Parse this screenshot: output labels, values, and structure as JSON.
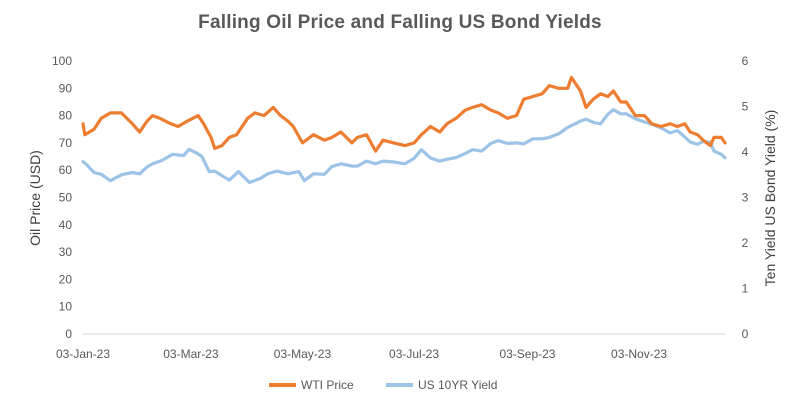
{
  "chart_data": {
    "type": "line",
    "title": "Falling Oil Price and Falling US Bond Yields",
    "xlabel": "",
    "ylabel": "Oil Price (USD)",
    "y2label": "Ten Yield  US Bond Yield (%)",
    "xlim": [
      "2023-01-03",
      "2023-12-20"
    ],
    "x_ticks": [
      "03-Jan-23",
      "03-Mar-23",
      "03-May-23",
      "03-Jul-23",
      "03-Sep-23",
      "03-Nov-23"
    ],
    "x_tick_dates": [
      "2023-01-03",
      "2023-03-03",
      "2023-05-03",
      "2023-07-03",
      "2023-09-03",
      "2023-11-03"
    ],
    "ylim": [
      0,
      100
    ],
    "y_ticks": [
      0,
      10,
      20,
      30,
      40,
      50,
      60,
      70,
      80,
      90,
      100
    ],
    "y2lim": [
      0,
      6
    ],
    "y2_ticks": [
      0,
      1,
      2,
      3,
      4,
      5,
      6
    ],
    "grid": false,
    "legend": "bottom",
    "series": [
      {
        "name": "WTI Price",
        "axis": "left",
        "color": "#ED7D31",
        "points": [
          [
            "2023-01-03",
            77
          ],
          [
            "2023-01-04",
            73
          ],
          [
            "2023-01-09",
            75
          ],
          [
            "2023-01-13",
            79
          ],
          [
            "2023-01-18",
            81
          ],
          [
            "2023-01-24",
            81
          ],
          [
            "2023-01-30",
            77
          ],
          [
            "2023-02-03",
            74
          ],
          [
            "2023-02-07",
            78
          ],
          [
            "2023-02-10",
            80
          ],
          [
            "2023-02-14",
            79
          ],
          [
            "2023-02-20",
            77
          ],
          [
            "2023-02-24",
            76
          ],
          [
            "2023-03-01",
            78
          ],
          [
            "2023-03-07",
            80
          ],
          [
            "2023-03-10",
            77
          ],
          [
            "2023-03-14",
            72
          ],
          [
            "2023-03-16",
            68
          ],
          [
            "2023-03-20",
            69
          ],
          [
            "2023-03-24",
            72
          ],
          [
            "2023-03-28",
            73
          ],
          [
            "2023-04-03",
            79
          ],
          [
            "2023-04-07",
            81
          ],
          [
            "2023-04-12",
            80
          ],
          [
            "2023-04-17",
            83
          ],
          [
            "2023-04-21",
            80
          ],
          [
            "2023-04-25",
            78
          ],
          [
            "2023-04-28",
            76
          ],
          [
            "2023-05-03",
            70
          ],
          [
            "2023-05-05",
            71
          ],
          [
            "2023-05-09",
            73
          ],
          [
            "2023-05-15",
            71
          ],
          [
            "2023-05-19",
            72
          ],
          [
            "2023-05-24",
            74
          ],
          [
            "2023-05-30",
            70
          ],
          [
            "2023-06-02",
            72
          ],
          [
            "2023-06-07",
            73
          ],
          [
            "2023-06-12",
            67
          ],
          [
            "2023-06-16",
            71
          ],
          [
            "2023-06-22",
            70
          ],
          [
            "2023-06-28",
            69
          ],
          [
            "2023-07-03",
            70
          ],
          [
            "2023-07-07",
            73
          ],
          [
            "2023-07-12",
            76
          ],
          [
            "2023-07-17",
            74
          ],
          [
            "2023-07-21",
            77
          ],
          [
            "2023-07-26",
            79
          ],
          [
            "2023-07-31",
            82
          ],
          [
            "2023-08-04",
            83
          ],
          [
            "2023-08-09",
            84
          ],
          [
            "2023-08-14",
            82
          ],
          [
            "2023-08-18",
            81
          ],
          [
            "2023-08-23",
            79
          ],
          [
            "2023-08-28",
            80
          ],
          [
            "2023-09-01",
            86
          ],
          [
            "2023-09-06",
            87
          ],
          [
            "2023-09-11",
            88
          ],
          [
            "2023-09-15",
            91
          ],
          [
            "2023-09-20",
            90
          ],
          [
            "2023-09-25",
            90
          ],
          [
            "2023-09-27",
            94
          ],
          [
            "2023-10-02",
            89
          ],
          [
            "2023-10-05",
            83
          ],
          [
            "2023-10-09",
            86
          ],
          [
            "2023-10-13",
            88
          ],
          [
            "2023-10-17",
            87
          ],
          [
            "2023-10-20",
            89
          ],
          [
            "2023-10-24",
            85
          ],
          [
            "2023-10-27",
            85
          ],
          [
            "2023-11-01",
            80
          ],
          [
            "2023-11-06",
            80
          ],
          [
            "2023-11-10",
            77
          ],
          [
            "2023-11-15",
            76
          ],
          [
            "2023-11-20",
            77
          ],
          [
            "2023-11-24",
            76
          ],
          [
            "2023-11-28",
            77
          ],
          [
            "2023-12-01",
            74
          ],
          [
            "2023-12-05",
            73
          ],
          [
            "2023-12-08",
            71
          ],
          [
            "2023-12-12",
            69
          ],
          [
            "2023-12-14",
            72
          ],
          [
            "2023-12-18",
            72
          ],
          [
            "2023-12-20",
            70
          ]
        ]
      },
      {
        "name": "US 10YR Yield",
        "axis": "right",
        "color": "#9DC3E6",
        "points": [
          [
            "2023-01-03",
            3.79
          ],
          [
            "2023-01-05",
            3.72
          ],
          [
            "2023-01-09",
            3.55
          ],
          [
            "2023-01-13",
            3.51
          ],
          [
            "2023-01-18",
            3.37
          ],
          [
            "2023-01-24",
            3.5
          ],
          [
            "2023-01-30",
            3.55
          ],
          [
            "2023-02-03",
            3.52
          ],
          [
            "2023-02-07",
            3.67
          ],
          [
            "2023-02-10",
            3.74
          ],
          [
            "2023-02-15",
            3.81
          ],
          [
            "2023-02-21",
            3.95
          ],
          [
            "2023-02-27",
            3.92
          ],
          [
            "2023-03-02",
            4.06
          ],
          [
            "2023-03-06",
            3.98
          ],
          [
            "2023-03-09",
            3.9
          ],
          [
            "2023-03-13",
            3.57
          ],
          [
            "2023-03-16",
            3.58
          ],
          [
            "2023-03-20",
            3.48
          ],
          [
            "2023-03-24",
            3.38
          ],
          [
            "2023-03-29",
            3.57
          ],
          [
            "2023-04-04",
            3.33
          ],
          [
            "2023-04-10",
            3.42
          ],
          [
            "2023-04-14",
            3.52
          ],
          [
            "2023-04-19",
            3.58
          ],
          [
            "2023-04-25",
            3.52
          ],
          [
            "2023-05-01",
            3.57
          ],
          [
            "2023-05-04",
            3.37
          ],
          [
            "2023-05-09",
            3.52
          ],
          [
            "2023-05-15",
            3.51
          ],
          [
            "2023-05-19",
            3.68
          ],
          [
            "2023-05-24",
            3.74
          ],
          [
            "2023-05-30",
            3.69
          ],
          [
            "2023-06-02",
            3.69
          ],
          [
            "2023-06-07",
            3.8
          ],
          [
            "2023-06-12",
            3.74
          ],
          [
            "2023-06-16",
            3.8
          ],
          [
            "2023-06-22",
            3.78
          ],
          [
            "2023-06-28",
            3.74
          ],
          [
            "2023-07-03",
            3.86
          ],
          [
            "2023-07-07",
            4.05
          ],
          [
            "2023-07-12",
            3.87
          ],
          [
            "2023-07-17",
            3.8
          ],
          [
            "2023-07-21",
            3.84
          ],
          [
            "2023-07-26",
            3.88
          ],
          [
            "2023-07-31",
            3.97
          ],
          [
            "2023-08-04",
            4.05
          ],
          [
            "2023-08-09",
            4.02
          ],
          [
            "2023-08-14",
            4.19
          ],
          [
            "2023-08-18",
            4.25
          ],
          [
            "2023-08-23",
            4.19
          ],
          [
            "2023-08-28",
            4.2
          ],
          [
            "2023-09-01",
            4.18
          ],
          [
            "2023-09-06",
            4.29
          ],
          [
            "2023-09-11",
            4.29
          ],
          [
            "2023-09-15",
            4.32
          ],
          [
            "2023-09-20",
            4.4
          ],
          [
            "2023-09-25",
            4.54
          ],
          [
            "2023-10-02",
            4.68
          ],
          [
            "2023-10-05",
            4.72
          ],
          [
            "2023-10-09",
            4.65
          ],
          [
            "2023-10-13",
            4.62
          ],
          [
            "2023-10-17",
            4.83
          ],
          [
            "2023-10-20",
            4.93
          ],
          [
            "2023-10-24",
            4.84
          ],
          [
            "2023-10-27",
            4.84
          ],
          [
            "2023-11-01",
            4.73
          ],
          [
            "2023-11-06",
            4.66
          ],
          [
            "2023-11-10",
            4.61
          ],
          [
            "2023-11-15",
            4.53
          ],
          [
            "2023-11-20",
            4.42
          ],
          [
            "2023-11-24",
            4.47
          ],
          [
            "2023-11-28",
            4.33
          ],
          [
            "2023-12-01",
            4.22
          ],
          [
            "2023-12-05",
            4.17
          ],
          [
            "2023-12-08",
            4.23
          ],
          [
            "2023-12-12",
            4.21
          ],
          [
            "2023-12-14",
            4.02
          ],
          [
            "2023-12-18",
            3.95
          ],
          [
            "2023-12-20",
            3.87
          ]
        ]
      }
    ]
  }
}
